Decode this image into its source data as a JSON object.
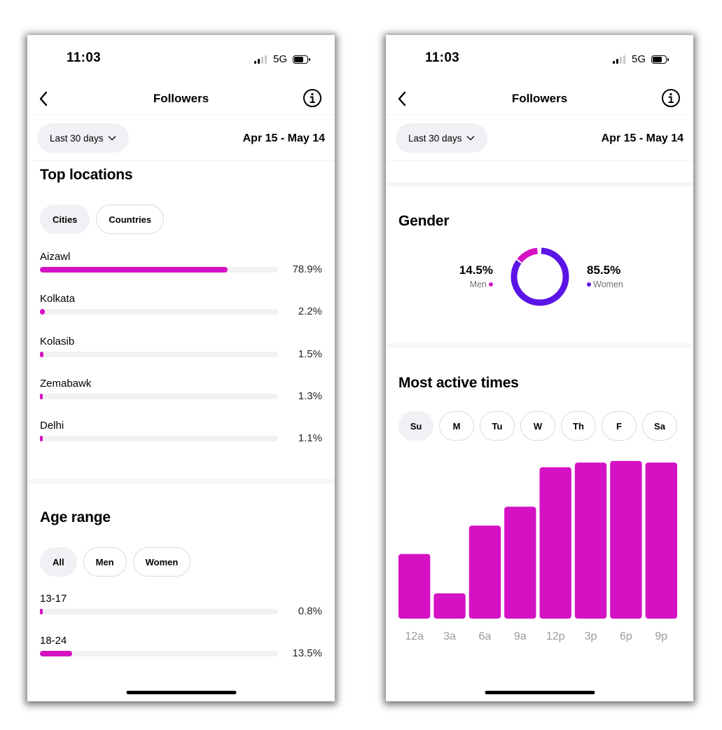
{
  "status": {
    "time": "11:03",
    "network": "5G"
  },
  "header": {
    "title": "Followers"
  },
  "filter": {
    "period": "Last 30 days",
    "date_range": "Apr 15 - May 14"
  },
  "colors": {
    "accent": "#d412c4",
    "women": "#5b14e6",
    "track": "#f1f1f1"
  },
  "icons": {
    "back": "chevron-left-icon",
    "info": "info-icon",
    "dropdown": "chevron-down-icon"
  },
  "top_locations": {
    "title": "Top locations",
    "tabs": [
      {
        "label": "Cities",
        "active": true
      },
      {
        "label": "Countries",
        "active": false
      }
    ],
    "items": [
      {
        "name": "Aizawl",
        "pct_label": "78.9%",
        "value": 78.9
      },
      {
        "name": "Kolkata",
        "pct_label": "2.2%",
        "value": 2.2
      },
      {
        "name": "Kolasib",
        "pct_label": "1.5%",
        "value": 1.5
      },
      {
        "name": "Zemabawk",
        "pct_label": "1.3%",
        "value": 1.3
      },
      {
        "name": "Delhi",
        "pct_label": "1.1%",
        "value": 1.1
      }
    ]
  },
  "age_range": {
    "title": "Age range",
    "tabs": [
      {
        "label": "All",
        "active": true
      },
      {
        "label": "Men",
        "active": false
      },
      {
        "label": "Women",
        "active": false
      }
    ],
    "items": [
      {
        "name": "13-17",
        "pct_label": "0.8%",
        "value": 0.8
      },
      {
        "name": "18-24",
        "pct_label": "13.5%",
        "value": 13.5
      }
    ]
  },
  "gender": {
    "title": "Gender",
    "men": {
      "pct_label": "14.5%",
      "label": "Men",
      "value": 14.5
    },
    "women": {
      "pct_label": "85.5%",
      "label": "Women",
      "value": 85.5
    }
  },
  "active_times": {
    "title": "Most active times",
    "days": [
      {
        "label": "Su",
        "active": true
      },
      {
        "label": "M",
        "active": false
      },
      {
        "label": "Tu",
        "active": false
      },
      {
        "label": "W",
        "active": false
      },
      {
        "label": "Th",
        "active": false
      },
      {
        "label": "F",
        "active": false
      },
      {
        "label": "Sa",
        "active": false
      }
    ]
  },
  "chart_data": {
    "type": "bar",
    "categories": [
      "12a",
      "3a",
      "6a",
      "9a",
      "12p",
      "3p",
      "6p",
      "9p"
    ],
    "values": [
      41,
      16,
      59,
      71,
      96,
      99,
      100,
      99
    ],
    "ylim": [
      0,
      100
    ],
    "grid": false,
    "title": "",
    "xlabel": "",
    "ylabel": ""
  }
}
